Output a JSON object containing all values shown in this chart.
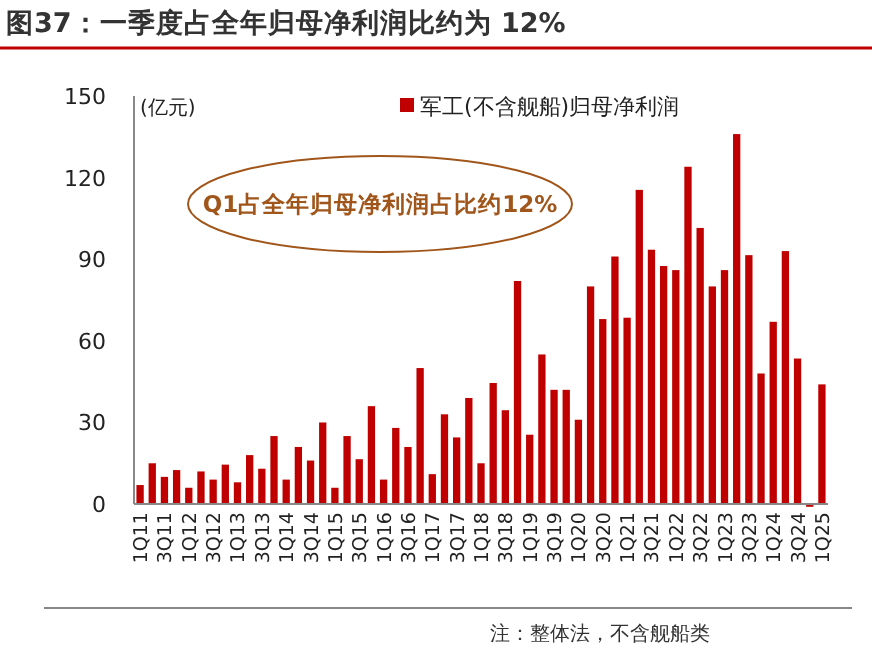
{
  "chart_data": {
    "type": "bar",
    "title": "图37：一季度占全年归母净利润比约为 12%",
    "ylabel": "(亿元)",
    "categories": [
      "1Q11",
      null,
      "3Q11",
      null,
      "1Q12",
      null,
      "3Q12",
      null,
      "1Q13",
      null,
      "3Q13",
      null,
      "1Q14",
      null,
      "3Q14",
      null,
      "1Q15",
      null,
      "3Q15",
      null,
      "1Q16",
      null,
      "3Q16",
      null,
      "1Q17",
      null,
      "3Q17",
      null,
      "1Q18",
      null,
      "3Q18",
      null,
      "1Q19",
      null,
      "3Q19",
      null,
      "1Q20",
      null,
      "3Q20",
      null,
      "1Q21",
      null,
      "3Q21",
      null,
      "1Q22",
      null,
      "3Q22",
      null,
      "1Q23",
      null,
      "3Q23",
      null,
      "1Q24",
      null,
      "3Q24",
      null,
      "1Q25"
    ],
    "series": [
      {
        "name": "军工(不含舰船)归母净利润",
        "color": "#c00000",
        "values": [
          7,
          15,
          10,
          12.5,
          6,
          12,
          9,
          14.5,
          8,
          18,
          13,
          25,
          9,
          21,
          16,
          30,
          6,
          25,
          16.5,
          36,
          9,
          28,
          21,
          50,
          11,
          33,
          24.5,
          39,
          15,
          44.5,
          34.5,
          82,
          25.5,
          55,
          42,
          42,
          31,
          80,
          68,
          91,
          68.5,
          115.5,
          93.5,
          87.5,
          86,
          124,
          101.5,
          80,
          86,
          136,
          91.5,
          48,
          67,
          93,
          53.5,
          -1,
          44
        ]
      }
    ],
    "ylim": [
      -1,
      150
    ],
    "yticks": [
      0,
      30,
      60,
      90,
      120,
      150
    ],
    "grid": false,
    "legend": "top",
    "annotations": [
      "Q1占全年归母净利润占比约12%",
      "注：整体法，不含舰船类"
    ]
  }
}
